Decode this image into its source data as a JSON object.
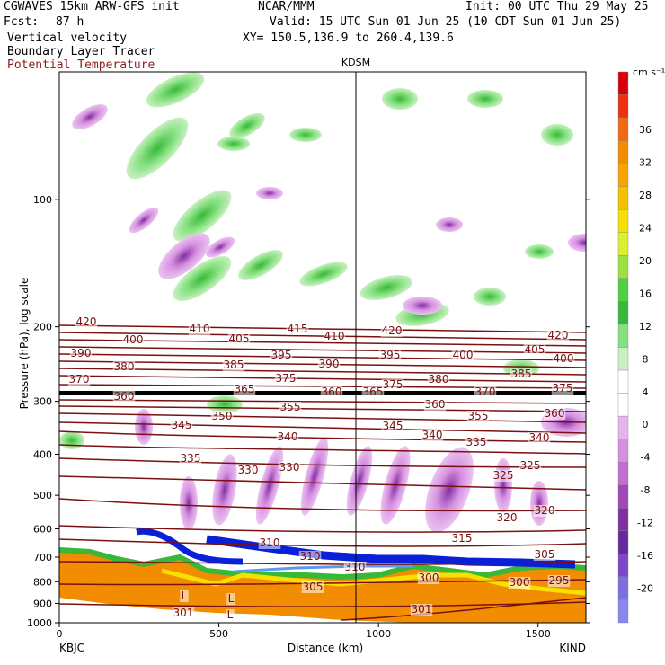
{
  "header": {
    "model": "CGWAVES 15km ARW-GFS init",
    "org": "NCAR/MMM",
    "init": "Init: 00 UTC Thu 29 May 25",
    "fcst_label": "Fcst:",
    "fcst_value": "87 h",
    "valid": "Valid: 15 UTC Sun 01 Jun 25 (10 CDT Sun 01 Jun 25)",
    "field1": "Vertical velocity",
    "field2": "Boundary Layer Tracer",
    "field3": "Potential Temperature",
    "xy": "XY= 150.5,136.9 to 260.4,139.6"
  },
  "colors": {
    "theta_contour": "#7a1010",
    "theta_label": "#8b1a1a",
    "tropopause_line": "#000000",
    "pbl_fill": "#f28c00",
    "tracer_blue": "#0a1fd8"
  },
  "chart_data": {
    "type": "heatmap",
    "title": "KDSM",
    "xlabel": "Distance (km)",
    "ylabel": "Pressure (hPa), log scale",
    "xlim": [
      0,
      1650
    ],
    "ylim": [
      1000,
      50
    ],
    "y_scale": "log",
    "x_ticks": [
      0,
      500,
      1000,
      1500
    ],
    "y_ticks": [
      100,
      200,
      300,
      400,
      500,
      600,
      700,
      800,
      900,
      1000
    ],
    "x_ends": {
      "left": "KBJC",
      "right": "KIND"
    },
    "marker_line": {
      "label": "KDSM",
      "x": 930
    },
    "colorbar": {
      "unit": "cm s⁻¹",
      "labels": [
        36,
        32,
        28,
        24,
        20,
        16,
        12,
        8,
        4,
        0,
        -4,
        -8,
        -12,
        -16,
        -20
      ],
      "colors": [
        "#d8000a",
        "#ec3010",
        "#f26a10",
        "#f28c00",
        "#f5a400",
        "#f5c000",
        "#f5e000",
        "#d8f030",
        "#9ee040",
        "#4ed040",
        "#38b838",
        "#86e080",
        "#c8f0c0",
        "#ffffff",
        "#ffffff",
        "#e6b4ec",
        "#d690e0",
        "#c070d0",
        "#a048b8",
        "#8030a0",
        "#662a9c",
        "#7a48c8",
        "#7a70e0",
        "#8888f0"
      ]
    },
    "theta_labels": [
      "420",
      "410",
      "415",
      "420",
      "420",
      "400",
      "405",
      "410",
      "405",
      "390",
      "395",
      "390",
      "395",
      "400",
      "400",
      "380",
      "385",
      "375",
      "385",
      "370",
      "375",
      "380",
      "375",
      "360",
      "360",
      "370",
      "365",
      "360",
      "355",
      "365",
      "350",
      "360",
      "345",
      "340",
      "345",
      "340",
      "355",
      "340",
      "335",
      "335",
      "330",
      "330",
      "325",
      "325",
      "320",
      "320",
      "315",
      "310",
      "310",
      "310",
      "305",
      "305",
      "300",
      "300",
      "295",
      "301",
      "301",
      "L",
      "L",
      "L"
    ]
  }
}
